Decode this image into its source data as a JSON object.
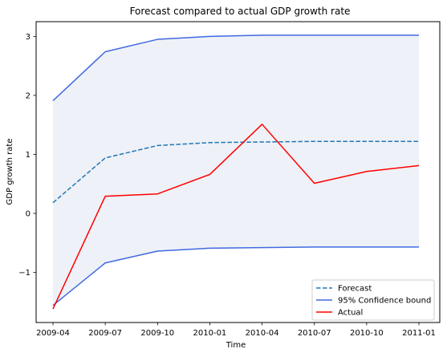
{
  "chart_data": {
    "type": "line",
    "title": "Forecast compared to actual GDP growth rate",
    "xlabel": "Time",
    "ylabel": "GDP growth rate",
    "x": [
      "2009-04",
      "2009-07",
      "2009-10",
      "2010-01",
      "2010-04",
      "2010-07",
      "2010-10",
      "2011-01"
    ],
    "xlim": [
      "2009-04",
      "2011-01"
    ],
    "ylim": [
      -1.85,
      3.25
    ],
    "yticks": [
      -1,
      0,
      1,
      2,
      3
    ],
    "yticklabels": [
      "−1",
      "0",
      "1",
      "2",
      "3"
    ],
    "grid": false,
    "legend_position": "lower-right",
    "band": {
      "label": "95% Confidence bound",
      "fill_color": "#eef1f7"
    },
    "series": [
      {
        "name": "Forecast",
        "color": "#1f77b4",
        "style": "dashed",
        "values": [
          0.18,
          0.94,
          1.15,
          1.2,
          1.21,
          1.22,
          1.22,
          1.22
        ]
      },
      {
        "name": "95% Confidence bound",
        "color": "#4169e1",
        "style": "solid",
        "values": [
          1.91,
          2.74,
          2.95,
          3.0,
          3.02,
          3.02,
          3.02,
          3.02
        ]
      },
      {
        "name": "95% Confidence bound (lower)",
        "color": "#4169e1",
        "style": "solid",
        "values": [
          -1.56,
          -0.84,
          -0.64,
          -0.59,
          -0.58,
          -0.57,
          -0.57,
          -0.57
        ]
      },
      {
        "name": "Actual",
        "color": "#ff0000",
        "style": "solid",
        "values": [
          -1.62,
          0.29,
          0.33,
          0.66,
          1.51,
          0.51,
          0.71,
          0.81
        ]
      }
    ],
    "legend": [
      {
        "label": "Forecast",
        "color": "#1f77b4",
        "style": "dashed"
      },
      {
        "label": "95% Confidence bound",
        "color": "#4169e1",
        "style": "solid"
      },
      {
        "label": "Actual",
        "color": "#ff0000",
        "style": "solid"
      }
    ]
  }
}
